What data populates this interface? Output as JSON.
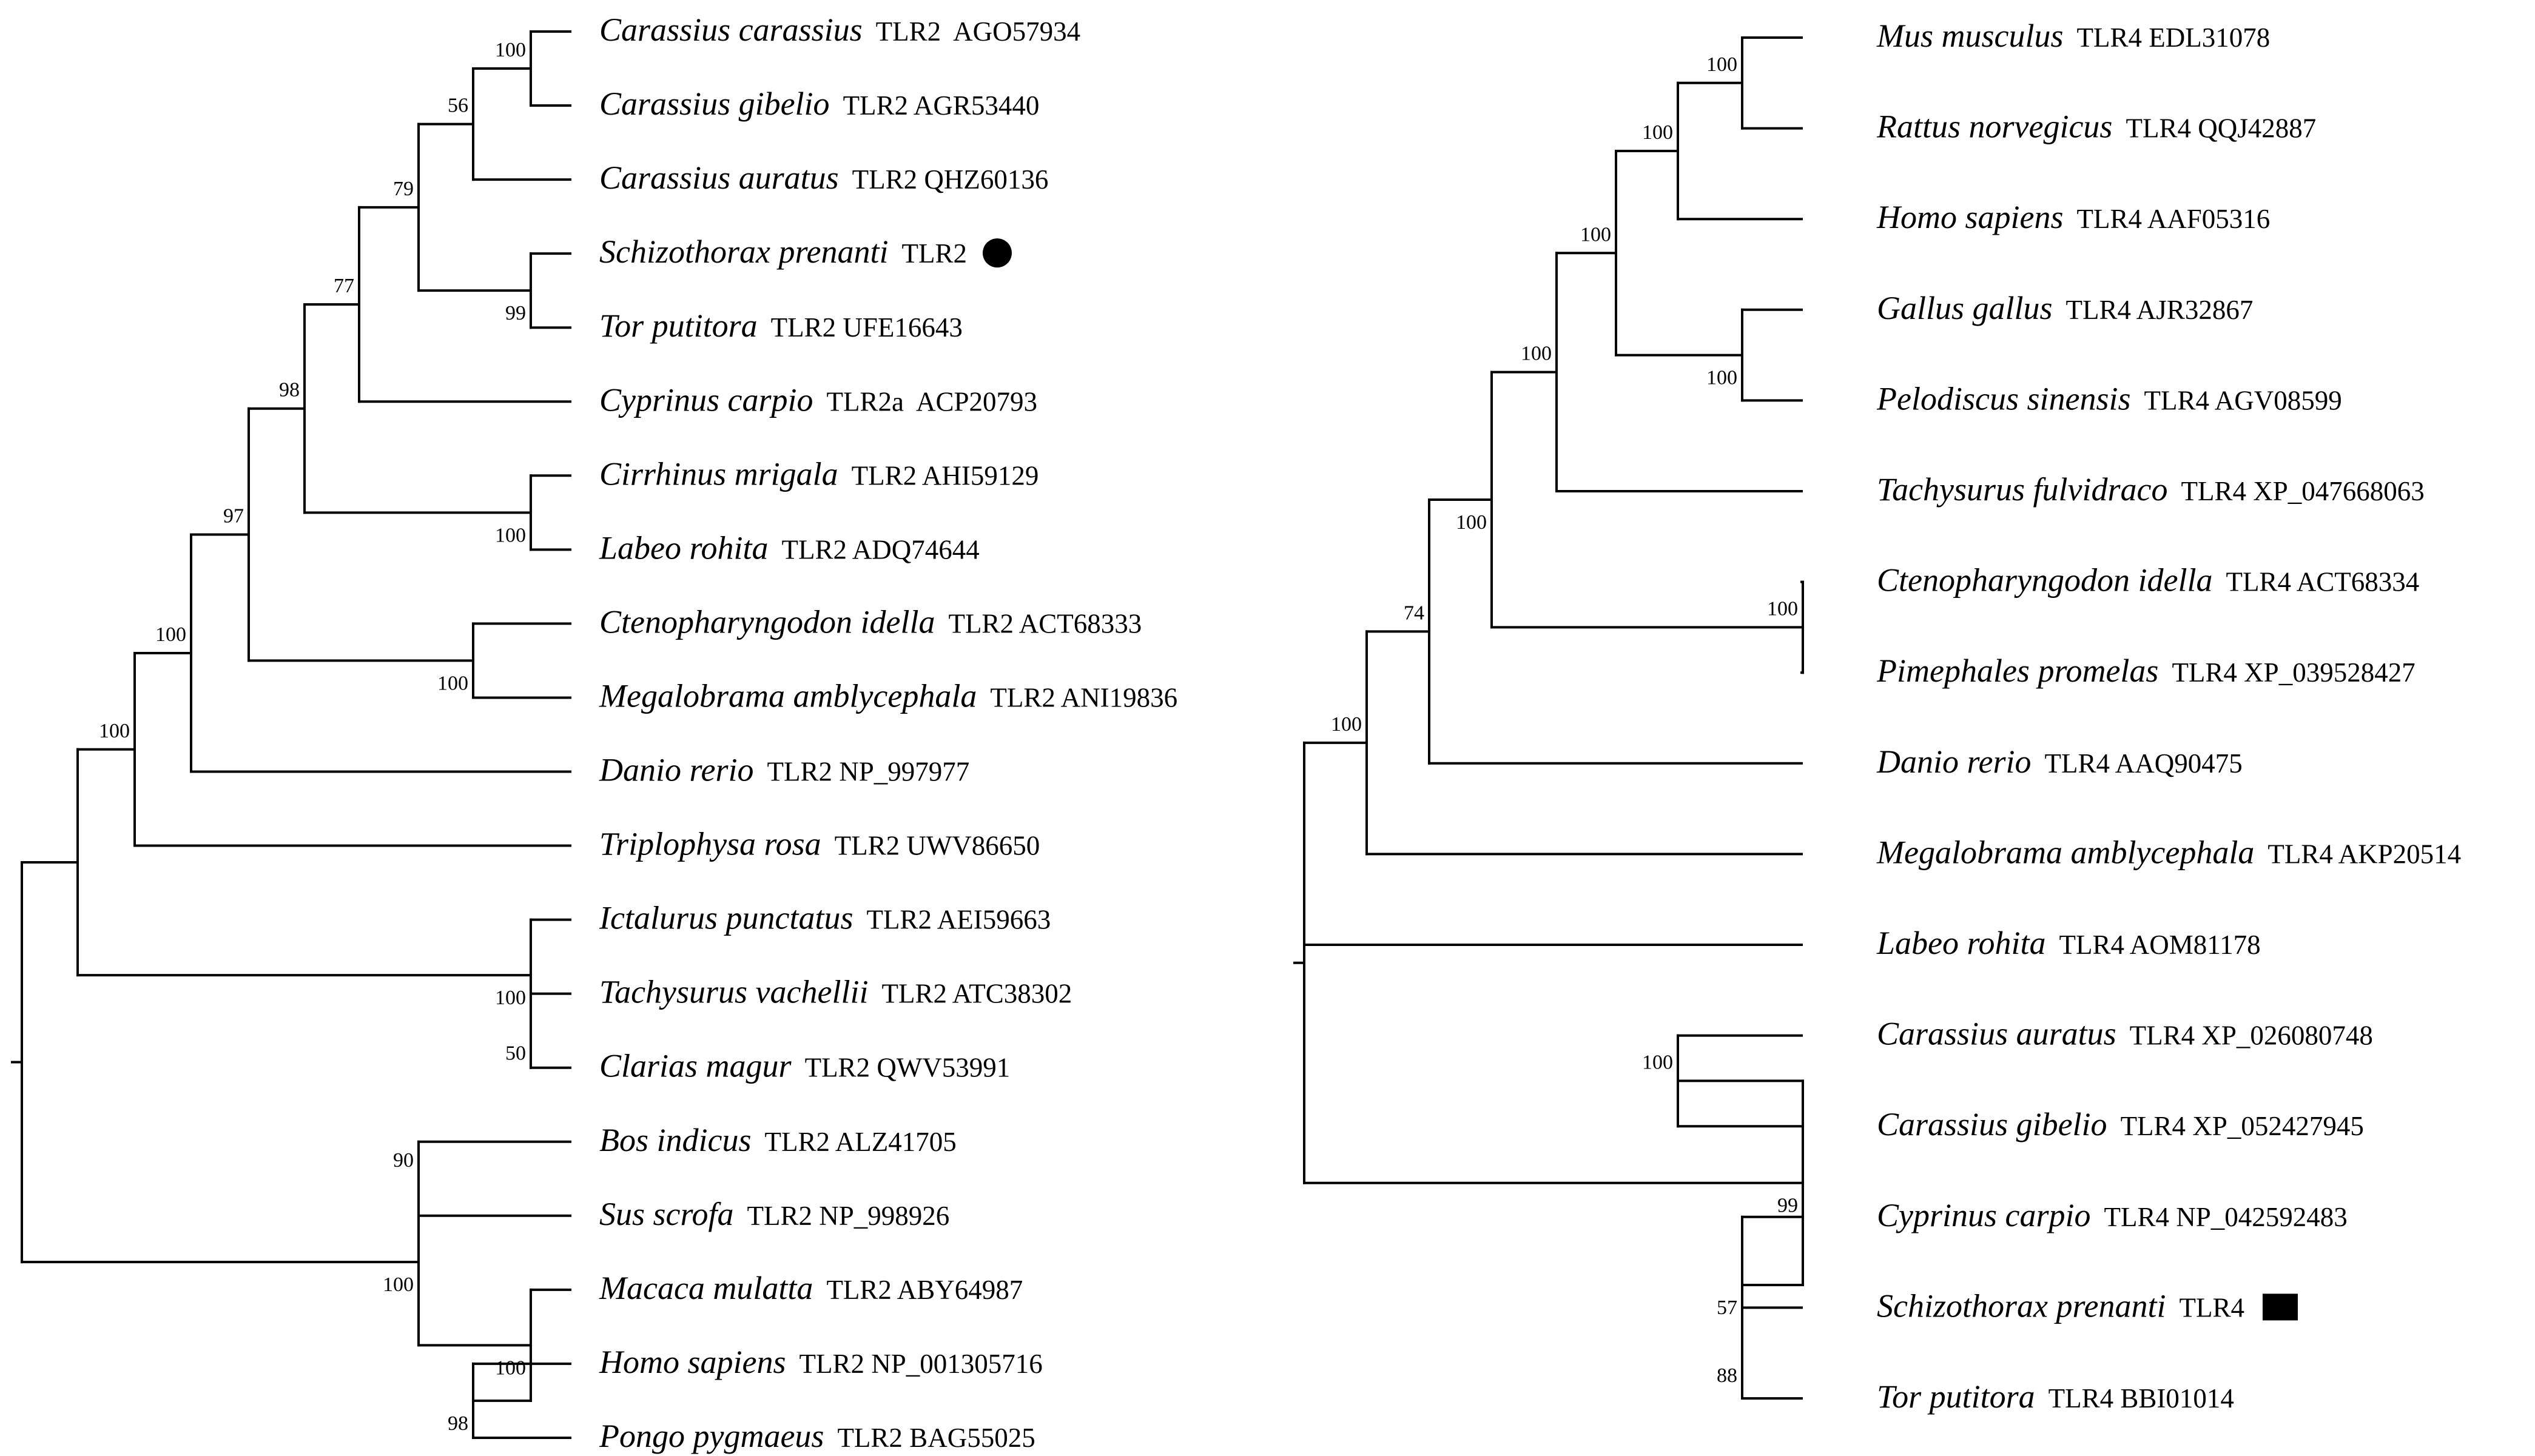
{
  "figure": "Neighbor-joining phylogenetic trees of fish TLR2 and TLR4",
  "trees": [
    {
      "id": "tlr2",
      "leaves": [
        {
          "species": "Carassius carassius",
          "accession": "TLR2  AGO57934"
        },
        {
          "species": "Carassius gibelio",
          "accession": "TLR2 AGR53440"
        },
        {
          "species": "Carassius auratus",
          "accession": "TLR2 QHZ60136"
        },
        {
          "species": "Schizothorax prenanti",
          "accession": "TLR2",
          "marker": "circle"
        },
        {
          "species": "Tor putitora",
          "accession": "TLR2 UFE16643"
        },
        {
          "species": "Cyprinus carpio",
          "accession": "TLR2a  ACP20793"
        },
        {
          "species": "Cirrhinus mrigala",
          "accession": "TLR2 AHI59129"
        },
        {
          "species": "Labeo rohita",
          "accession": "TLR2 ADQ74644"
        },
        {
          "species": "Ctenopharyngodon idella",
          "accession": "TLR2 ACT68333"
        },
        {
          "species": "Megalobrama amblycephala",
          "accession": "TLR2 ANI19836"
        },
        {
          "species": "Danio rerio",
          "accession": "TLR2 NP_997977"
        },
        {
          "species": "Triplophysa rosa",
          "accession": "TLR2 UWV86650"
        },
        {
          "species": "Ictalurus punctatus",
          "accession": "TLR2 AEI59663"
        },
        {
          "species": "Tachysurus vachellii",
          "accession": "TLR2 ATC38302"
        },
        {
          "species": "Clarias magur",
          "accession": "TLR2 QWV53991"
        },
        {
          "species": "Bos indicus",
          "accession": "TLR2 ALZ41705"
        },
        {
          "species": "Sus scrofa",
          "accession": "TLR2 NP_998926"
        },
        {
          "species": "Macaca mulatta",
          "accession": "TLR2 ABY64987"
        },
        {
          "species": "Homo sapiens",
          "accession": "TLR2 NP_001305716"
        },
        {
          "species": "Pongo pygmaeus",
          "accession": "TLR2 BAG55025"
        }
      ],
      "bootstrap": [
        "100",
        "56",
        "79",
        "99",
        "77",
        "98",
        "100",
        "97",
        "100",
        "100",
        "100",
        "100",
        "50",
        "90",
        "100",
        "100",
        "98"
      ]
    },
    {
      "id": "tlr4",
      "leaves": [
        {
          "species": "Mus musculus",
          "accession": "TLR4 EDL31078"
        },
        {
          "species": "Rattus norvegicus",
          "accession": "TLR4 QQJ42887"
        },
        {
          "species": "Homo sapiens",
          "accession": "TLR4 AAF05316"
        },
        {
          "species": "Gallus gallus",
          "accession": "TLR4 AJR32867"
        },
        {
          "species": "Pelodiscus sinensis",
          "accession": "TLR4 AGV08599"
        },
        {
          "species": "Tachysurus fulvidraco",
          "accession": "TLR4 XP_047668063"
        },
        {
          "species": "Ctenopharyngodon idella",
          "accession": "TLR4 ACT68334"
        },
        {
          "species": "Pimephales promelas",
          "accession": "TLR4 XP_039528427"
        },
        {
          "species": "Danio rerio",
          "accession": "TLR4 AAQ90475"
        },
        {
          "species": "Megalobrama amblycephala",
          "accession": "TLR4 AKP20514"
        },
        {
          "species": "Labeo rohita",
          "accession": "TLR4 AOM81178"
        },
        {
          "species": "Carassius auratus",
          "accession": "TLR4 XP_026080748"
        },
        {
          "species": "Carassius gibelio",
          "accession": "TLR4 XP_052427945"
        },
        {
          "species": "Cyprinus carpio",
          "accession": "TLR4 NP_042592483"
        },
        {
          "species": "Schizothorax prenanti",
          "accession": "TLR4",
          "marker": "square"
        },
        {
          "species": "Tor putitora",
          "accession": "TLR4 BBI01014"
        }
      ],
      "bootstrap": [
        "100",
        "100",
        "100",
        "100",
        "100",
        "100",
        "100",
        "74",
        "100",
        "100",
        "99",
        "57",
        "88"
      ]
    }
  ]
}
